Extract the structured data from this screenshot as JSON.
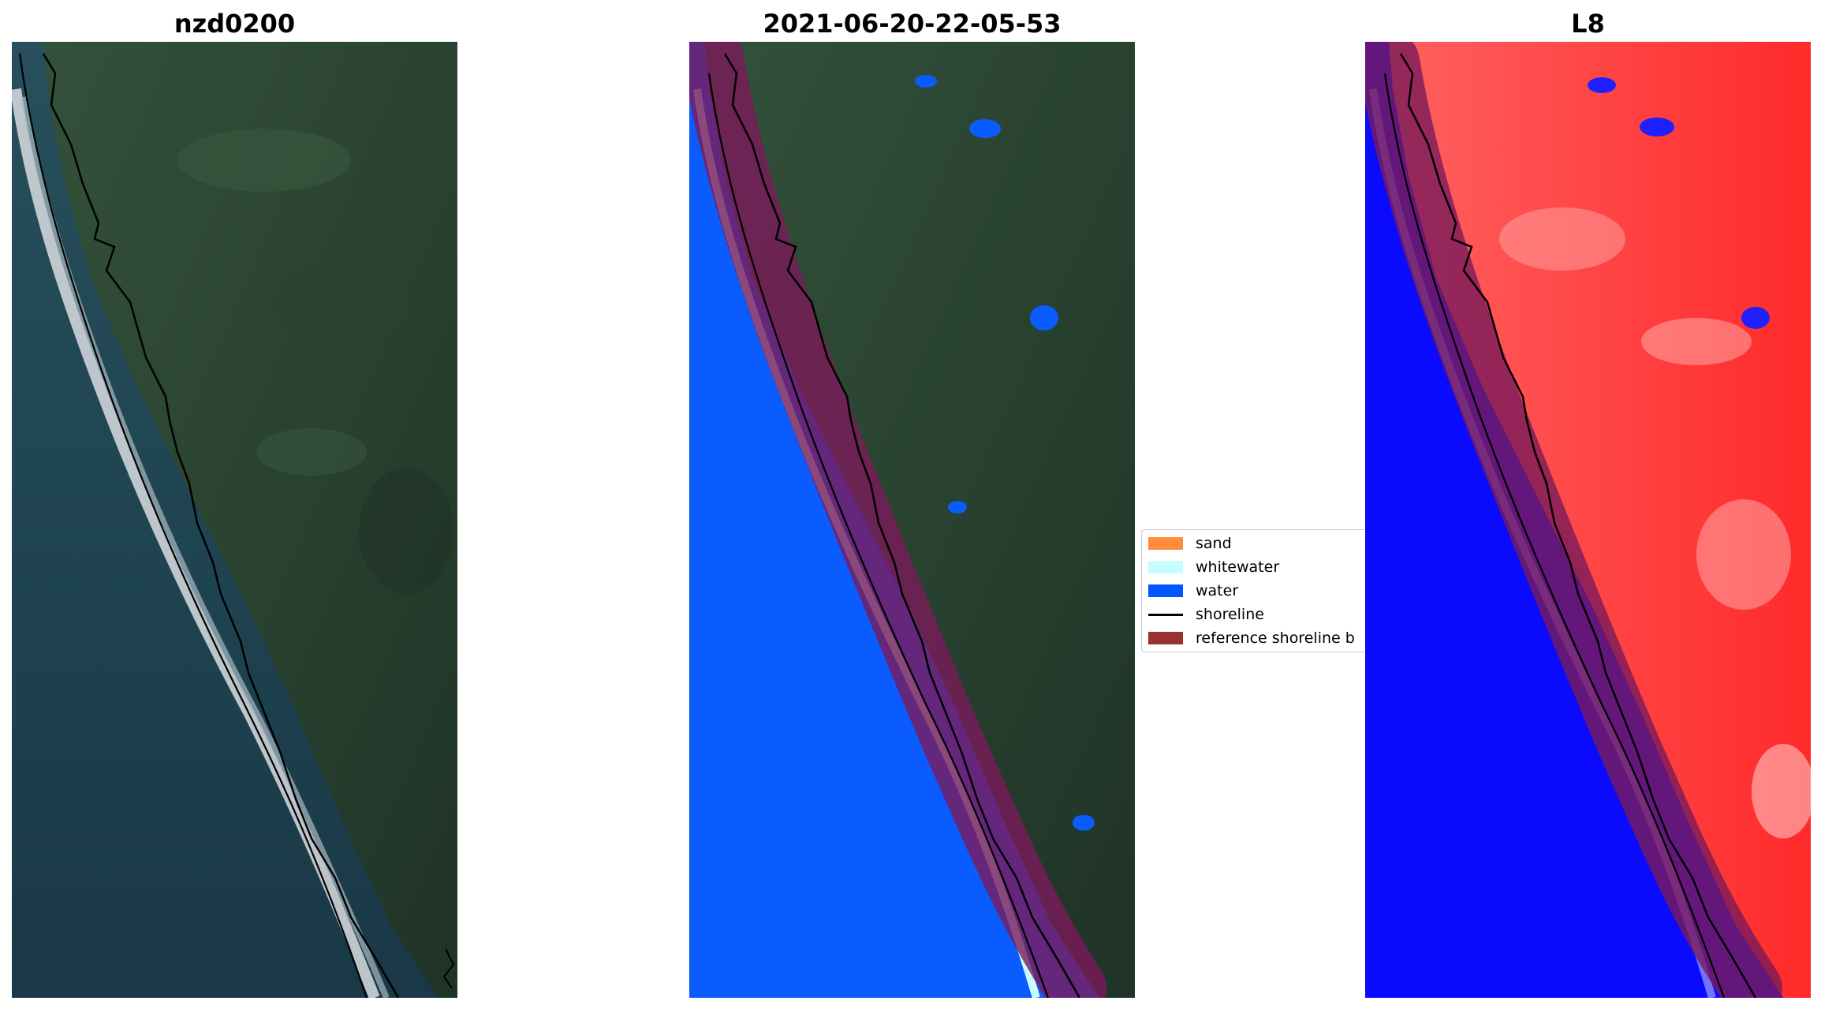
{
  "panels": [
    {
      "title": "nzd0200",
      "image": "RGB satellite image of coastline"
    },
    {
      "title": "2021-06-20-22-05-53",
      "image": "classified image"
    },
    {
      "title": "L8",
      "image": "MNDWI-style index image"
    }
  ],
  "legend": {
    "items": [
      {
        "label": "sand",
        "color": "#ff8c3a"
      },
      {
        "label": "whitewater",
        "color": "#c8fdfd"
      },
      {
        "label": "water",
        "color": "#0056ff"
      },
      {
        "label": "shoreline",
        "color": "#000000"
      },
      {
        "label": "reference shoreline b",
        "color": "#9a3232"
      }
    ]
  },
  "colors": {
    "ocean": "#1d4352",
    "land": "#2f4a35",
    "water_class": "#0a5cff",
    "buffer": "#7a1a5a",
    "index_land": "#ff3030",
    "index_water": "#0a0aff"
  }
}
